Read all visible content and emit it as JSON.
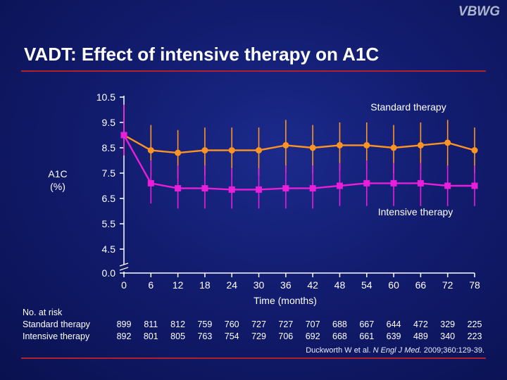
{
  "logo": "VBWG",
  "title": "VADT: Effect of intensive therapy on A1C",
  "citation": {
    "prefix": "Duckworth W et al. ",
    "journal": "N Engl J Med.",
    "suffix": " 2009;360:129-39."
  },
  "colors": {
    "standard": "#ff9422",
    "intensive": "#e81ed8",
    "rule": "#b2202e",
    "background": "#121c6e"
  },
  "chart_data": {
    "type": "line",
    "xlabel": "Time (months)",
    "ylabel": "A1C\n(%)",
    "x": [
      0,
      6,
      12,
      18,
      24,
      30,
      36,
      42,
      48,
      54,
      60,
      66,
      72,
      78
    ],
    "x_ticks": [
      "0",
      "6",
      "12",
      "18",
      "24",
      "30",
      "36",
      "42",
      "48",
      "54",
      "60",
      "66",
      "72",
      "78"
    ],
    "y_ticks": [
      "10.5",
      "9.5",
      "8.5",
      "7.5",
      "6.5",
      "5.5",
      "4.5",
      "0.0"
    ],
    "y_tick_values": [
      10.5,
      9.5,
      8.5,
      7.5,
      6.5,
      5.5,
      4.5,
      0.0
    ],
    "y_axis_break": "between 0.0 and 4.5",
    "grid": false,
    "series": [
      {
        "name": "Standard therapy",
        "marker": "circle",
        "y": [
          9.0,
          8.4,
          8.3,
          8.4,
          8.4,
          8.4,
          8.6,
          8.5,
          8.6,
          8.6,
          8.5,
          8.6,
          8.7,
          8.4
        ],
        "err_low": [
          8.2,
          7.4,
          7.3,
          7.4,
          7.4,
          7.4,
          7.5,
          7.5,
          7.6,
          7.6,
          7.5,
          7.6,
          7.7,
          7.5
        ],
        "err_high": [
          10.2,
          9.4,
          9.2,
          9.3,
          9.3,
          9.3,
          9.6,
          9.4,
          9.5,
          9.5,
          9.4,
          9.5,
          9.6,
          9.3
        ]
      },
      {
        "name": "Intensive therapy",
        "marker": "square",
        "y": [
          9.0,
          7.1,
          6.9,
          6.9,
          6.85,
          6.85,
          6.9,
          6.9,
          7.0,
          7.1,
          7.1,
          7.1,
          7.0,
          7.0
        ],
        "err_low": [
          8.2,
          6.3,
          6.1,
          6.1,
          6.1,
          6.1,
          6.1,
          6.1,
          6.2,
          6.2,
          6.2,
          6.2,
          6.2,
          6.2
        ],
        "err_high": [
          10.2,
          8.0,
          7.8,
          7.8,
          7.7,
          7.7,
          7.8,
          7.8,
          7.9,
          8.0,
          7.9,
          7.9,
          7.8,
          7.8
        ]
      }
    ],
    "annotations": [
      "Standard therapy",
      "Intensive therapy"
    ],
    "number_at_risk": {
      "header": "No. at risk",
      "rows": [
        {
          "label": "Standard therapy",
          "values": [
            "899",
            "811",
            "812",
            "759",
            "760",
            "727",
            "727",
            "707",
            "688",
            "667",
            "644",
            "472",
            "329",
            "225"
          ]
        },
        {
          "label": "Intensive therapy",
          "values": [
            "892",
            "801",
            "805",
            "763",
            "754",
            "729",
            "706",
            "692",
            "668",
            "661",
            "639",
            "489",
            "340",
            "223"
          ]
        }
      ]
    }
  }
}
